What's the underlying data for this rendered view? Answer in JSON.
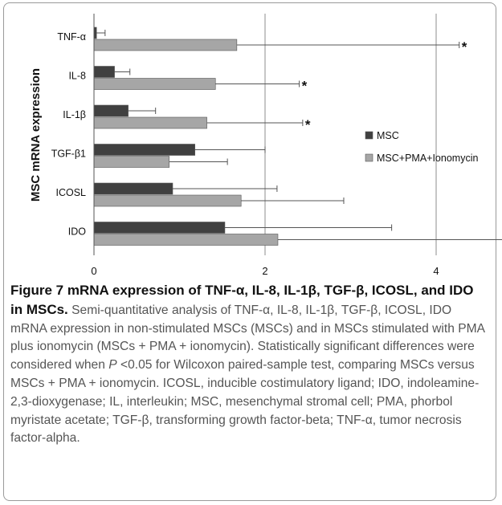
{
  "chart_data": {
    "type": "bar",
    "orientation": "horizontal",
    "ylabel": "MSC mRNA expression",
    "categories": [
      "TNF-α",
      "IL-8",
      "IL-1β",
      "TGF-β1",
      "ICOSL",
      "IDO"
    ],
    "xlim": [
      0,
      6
    ],
    "xticks": [
      "0",
      "2",
      "4"
    ],
    "grid": "vertical",
    "legend_position": "right",
    "series": [
      {
        "name": "MSC",
        "color": "#404040",
        "values": [
          0.03,
          0.24,
          0.4,
          1.18,
          0.92,
          1.53
        ],
        "errors": [
          0.1,
          0.18,
          0.32,
          0.82,
          1.22,
          1.95
        ]
      },
      {
        "name": "MSC+PMA+Ionomycin",
        "color": "#a6a6a6",
        "values": [
          1.67,
          1.42,
          1.32,
          0.88,
          1.72,
          2.15
        ],
        "errors": [
          2.6,
          0.98,
          1.12,
          0.68,
          1.2,
          3.0
        ]
      }
    ],
    "significance_markers": [
      "*",
      "*",
      "*",
      "",
      "",
      ""
    ]
  },
  "caption": {
    "title": "Figure 7 mRNA expression of TNF-α, IL-8, IL-1β, TGF-β, ICOSL, and IDO in MSCs.",
    "body_1": " Semi-quantitative analysis of TNF-α, IL-8, IL-1β, TGF-β, ICOSL, IDO mRNA expression in non-stimulated MSCs (MSCs) and in MSCs stimulated with PMA plus ionomycin (MSCs + PMA + ionomycin). Statistically significant differences were considered when ",
    "p_italic": "P",
    "body_2": " <0.05 for Wilcoxon paired-sample test, comparing MSCs versus MSCs + PMA + ionomycin. ICOSL, inducible costimulatory ligand; IDO, indoleamine-2,3-dioxygenase; IL, interleukin; MSC, mesenchymal stromal cell; PMA, phorbol myristate acetate; TGF-β, transforming growth factor-beta; TNF-α, tumor necrosis factor-alpha."
  }
}
